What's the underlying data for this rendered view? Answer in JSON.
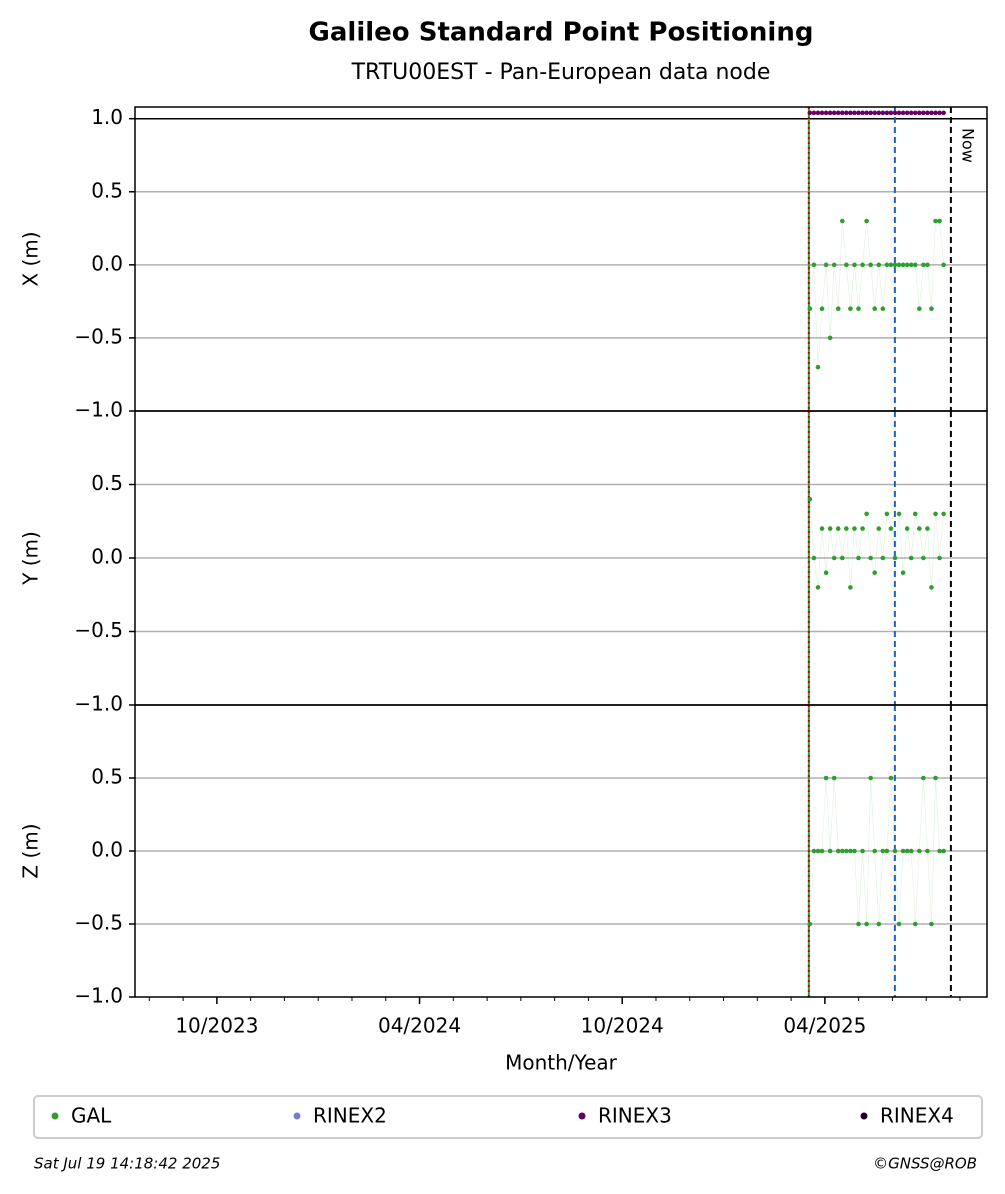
{
  "title": "Galileo Standard Point Positioning",
  "subtitle": "TRTU00EST - Pan-European data node",
  "x_label": "Month/Year",
  "xlim": [
    2023.548,
    2025.65
  ],
  "xticks": [
    {
      "value": 2023.75,
      "label": "10/2023"
    },
    {
      "value": 2024.25,
      "label": "04/2024"
    },
    {
      "value": 2024.75,
      "label": "10/2024"
    },
    {
      "value": 2025.25,
      "label": "04/2025"
    }
  ],
  "x_minor_ticks": [
    2023.5833,
    2023.6667,
    2023.8333,
    2023.9167,
    2024.0,
    2024.0833,
    2024.1667,
    2024.3333,
    2024.4167,
    2024.5,
    2024.5833,
    2024.6667,
    2024.8333,
    2024.9167,
    2025.0,
    2025.0833,
    2025.1667,
    2025.3333,
    2025.4167,
    2025.5,
    2025.5833
  ],
  "vlines": [
    {
      "x": 2025.2105,
      "color": "#2ca02c",
      "style": "solid"
    },
    {
      "x": 2025.2105,
      "color": "#cc0000",
      "style": "dotted"
    },
    {
      "x": 2025.4227,
      "color": "#1f5fbf",
      "style": "dashed"
    },
    {
      "x": 2025.5609,
      "color": "#000000",
      "style": "dashed",
      "label": "Now"
    }
  ],
  "legend": [
    {
      "name": "GAL",
      "color": "#2f9e2f"
    },
    {
      "name": "RINEX2",
      "color": "#7b7bc8"
    },
    {
      "name": "RINEX3",
      "color": "#660066"
    },
    {
      "name": "RINEX4",
      "color": "#220022"
    }
  ],
  "timestamp": "Sat Jul 19 14:18:42 2025",
  "copyright": "©GNSS@ROB",
  "chart_data": [
    {
      "type": "scatter",
      "y_label": "X (m)",
      "ylim": [
        -1,
        1.08
      ],
      "reference_line": 1,
      "yticks": [
        {
          "value": -1,
          "label": "−1.0"
        },
        {
          "value": -0.5,
          "label": "−0.5"
        },
        {
          "value": 0,
          "label": "0.0"
        },
        0.5,
        {
          "value": 1,
          "label": "1.0"
        }
      ],
      "grid": true,
      "x": [
        2025.213,
        2025.223,
        2025.233,
        2025.243,
        2025.253,
        2025.263,
        2025.273,
        2025.283,
        2025.293,
        2025.303,
        2025.313,
        2025.323,
        2025.333,
        2025.343,
        2025.353,
        2025.363,
        2025.373,
        2025.383,
        2025.393,
        2025.403,
        2025.413,
        2025.423,
        2025.433,
        2025.443,
        2025.453,
        2025.463,
        2025.473,
        2025.483,
        2025.493,
        2025.503,
        2025.513,
        2025.523,
        2025.533,
        2025.543
      ],
      "series": [
        {
          "color": "#2f9e2f",
          "values": [
            -0.3,
            0,
            -0.7,
            -0.3,
            0,
            -0.5,
            0,
            -0.3,
            0.3,
            0,
            -0.3,
            0,
            -0.3,
            0,
            0.3,
            0,
            -0.3,
            0,
            -0.3,
            0,
            0,
            0,
            0,
            0,
            0,
            0,
            0,
            -0.3,
            0,
            0,
            -0.3,
            0.3,
            0.3,
            0
          ]
        },
        {
          "color": "#660066",
          "values": [
            1.04,
            1.04,
            1.04,
            1.04,
            1.04,
            1.04,
            1.04,
            1.04,
            1.04,
            1.04,
            1.04,
            1.04,
            1.04,
            1.04,
            1.04,
            1.04,
            1.04,
            1.04,
            1.04,
            1.04,
            1.04,
            1.04,
            1.04,
            1.04,
            1.04,
            1.04,
            1.04,
            1.04,
            1.04,
            1.04,
            1.04,
            1.04,
            1.04,
            1.04
          ]
        }
      ]
    },
    {
      "type": "scatter",
      "y_label": "Y (m)",
      "ylim": [
        -1,
        1
      ],
      "yticks": [
        {
          "value": -1,
          "label": "−1.0"
        },
        {
          "value": -0.5,
          "label": "−0.5"
        },
        {
          "value": 0,
          "label": "0.0"
        },
        0.5
      ],
      "grid": true,
      "x": [
        2025.213,
        2025.223,
        2025.233,
        2025.243,
        2025.253,
        2025.263,
        2025.273,
        2025.283,
        2025.293,
        2025.303,
        2025.313,
        2025.323,
        2025.333,
        2025.343,
        2025.353,
        2025.363,
        2025.373,
        2025.383,
        2025.393,
        2025.403,
        2025.413,
        2025.423,
        2025.433,
        2025.443,
        2025.453,
        2025.463,
        2025.473,
        2025.483,
        2025.493,
        2025.503,
        2025.513,
        2025.523,
        2025.533,
        2025.543
      ],
      "series": [
        {
          "color": "#2f9e2f",
          "values": [
            0.4,
            0,
            -0.2,
            0.2,
            -0.1,
            0.2,
            0,
            0.2,
            0,
            0.2,
            -0.2,
            0.2,
            0,
            0.2,
            0.3,
            0,
            -0.1,
            0.2,
            0,
            0.3,
            0.2,
            0,
            0.3,
            -0.1,
            0.2,
            0,
            0.3,
            0.2,
            0,
            0.2,
            -0.2,
            0.3,
            0,
            0.3
          ]
        }
      ]
    },
    {
      "type": "scatter",
      "y_label": "Z (m)",
      "ylim": [
        -1,
        1
      ],
      "yticks": [
        {
          "value": -1,
          "label": "−1.0"
        },
        {
          "value": -0.5,
          "label": "−0.5"
        },
        {
          "value": 0,
          "label": "0.0"
        },
        0.5
      ],
      "grid": true,
      "x": [
        2025.213,
        2025.223,
        2025.233,
        2025.243,
        2025.253,
        2025.263,
        2025.273,
        2025.283,
        2025.293,
        2025.303,
        2025.313,
        2025.323,
        2025.333,
        2025.343,
        2025.353,
        2025.363,
        2025.373,
        2025.383,
        2025.393,
        2025.403,
        2025.413,
        2025.423,
        2025.433,
        2025.443,
        2025.453,
        2025.463,
        2025.473,
        2025.483,
        2025.493,
        2025.503,
        2025.513,
        2025.523,
        2025.533,
        2025.543
      ],
      "series": [
        {
          "color": "#2f9e2f",
          "values": [
            -0.5,
            0,
            0,
            0,
            0.5,
            0,
            0.5,
            0,
            0,
            0,
            0,
            0,
            -0.5,
            0,
            -0.5,
            0.5,
            0,
            -0.5,
            0,
            0,
            0.5,
            0,
            -0.5,
            0,
            0,
            0,
            -0.5,
            0,
            0.5,
            0,
            -0.5,
            0.5,
            0,
            0
          ]
        }
      ]
    }
  ]
}
